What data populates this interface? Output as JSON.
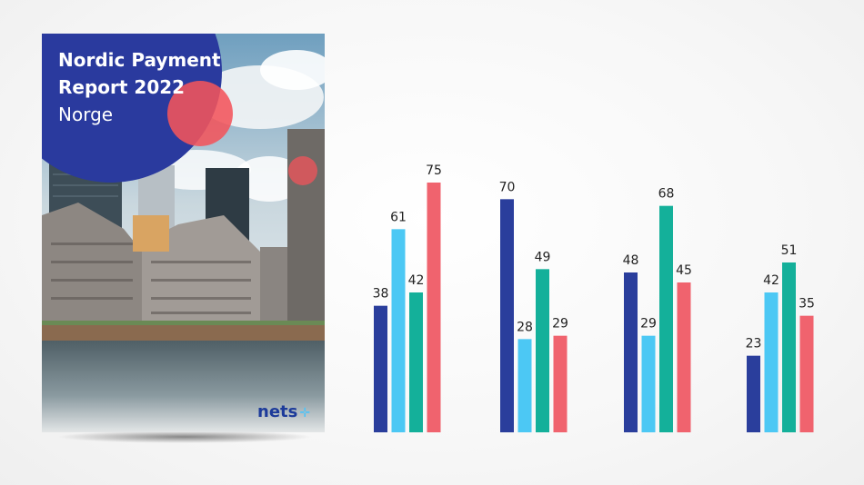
{
  "cover": {
    "title_line1": "Nordic Payment",
    "title_line2": "Report 2022",
    "subtitle": "Norge",
    "logo_text": "nets",
    "logo_mark_icon": "cross-dots-icon",
    "colors": {
      "circle_blue": "#2a3a9e",
      "circle_red": "#f2545b",
      "logo": "#1d3b9a"
    }
  },
  "chart_data": {
    "type": "bar",
    "categories": [
      "",
      "",
      "",
      ""
    ],
    "series": [
      {
        "color": "#2a3e9c",
        "values": [
          38,
          70,
          48,
          23
        ]
      },
      {
        "color": "#4cc8f4",
        "values": [
          61,
          28,
          29,
          42
        ]
      },
      {
        "color": "#14b09a",
        "values": [
          42,
          49,
          68,
          51
        ]
      },
      {
        "color": "#f0636e",
        "values": [
          75,
          29,
          45,
          35
        ]
      }
    ],
    "ylim": [
      0,
      75
    ],
    "grid": false,
    "legend": "none"
  }
}
